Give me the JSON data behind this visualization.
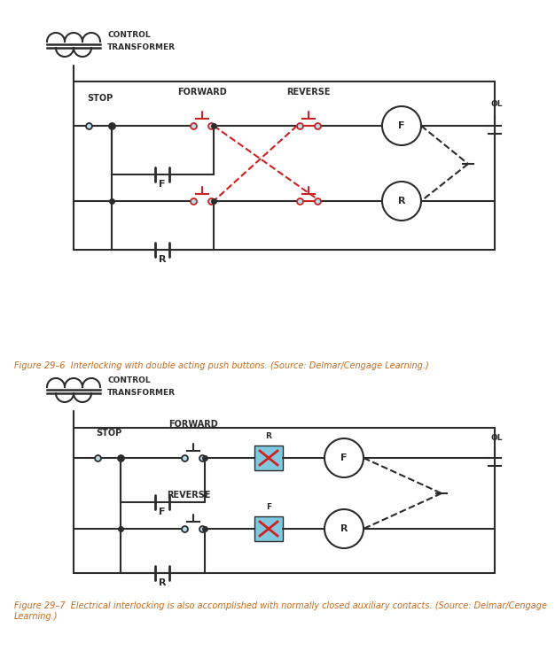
{
  "bg_color": "#b8dce8",
  "line_color": "#2c2c2c",
  "red_color": "#cc2222",
  "orange_color": "#c8691a",
  "highlight_color": "#80c8e0",
  "fig_bg": "#ffffff",
  "caption1": "Figure 29–6  Interlocking with double acting push buttons. (Source: Delmar/Cengage Learning.)",
  "caption2": "Figure 29–7  Electrical interlocking is also accomplished with normally closed auxiliary contacts. (Source: Delmar/Cengage\nLearning.)"
}
